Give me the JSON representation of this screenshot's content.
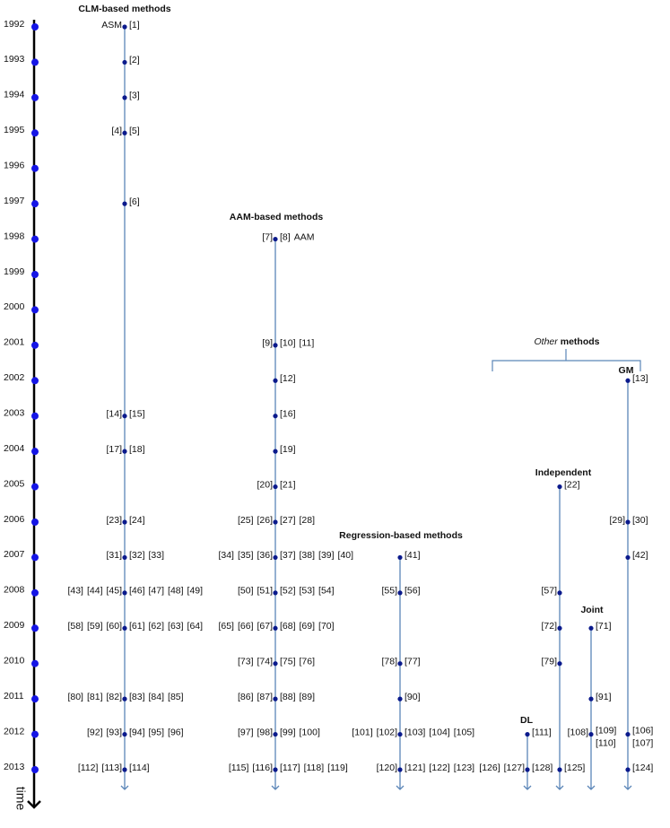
{
  "axis_label": "time",
  "years": [
    1992,
    1993,
    1994,
    1995,
    1996,
    1997,
    1998,
    1999,
    2000,
    2001,
    2002,
    2003,
    2004,
    2005,
    2006,
    2007,
    2008,
    2009,
    2010,
    2011,
    2012,
    2013
  ],
  "other_title": {
    "emphasis": "Other",
    "rest": "methods"
  },
  "branches": [
    {
      "title": "CLM-based methods",
      "rows": [
        {
          "year": 1992,
          "left": [
            "ASM"
          ],
          "right": [
            "[1]"
          ]
        },
        {
          "year": 1993,
          "left": [],
          "right": [
            "[2]"
          ]
        },
        {
          "year": 1994,
          "left": [],
          "right": [
            "[3]"
          ]
        },
        {
          "year": 1995,
          "left": [
            "[4]"
          ],
          "right": [
            "[5]"
          ]
        },
        {
          "year": 1997,
          "left": [],
          "right": [
            "[6]"
          ]
        },
        {
          "year": 2003,
          "left": [
            "[14]"
          ],
          "right": [
            "[15]"
          ]
        },
        {
          "year": 2004,
          "left": [
            "[17]"
          ],
          "right": [
            "[18]"
          ]
        },
        {
          "year": 2006,
          "left": [
            "[23]"
          ],
          "right": [
            "[24]"
          ]
        },
        {
          "year": 2007,
          "left": [
            "[31]"
          ],
          "right": [
            "[32]",
            "[33]"
          ]
        },
        {
          "year": 2008,
          "left": [
            "[43]",
            "[44]",
            "[45]"
          ],
          "right": [
            "[46]",
            "[47]",
            "[48]",
            "[49]"
          ]
        },
        {
          "year": 2009,
          "left": [
            "[58]",
            "[59]",
            "[60]"
          ],
          "right": [
            "[61]",
            "[62]",
            "[63]",
            "[64]"
          ]
        },
        {
          "year": 2011,
          "left": [
            "[80]",
            "[81]",
            "[82]"
          ],
          "right": [
            "[83]",
            "[84]",
            "[85]"
          ]
        },
        {
          "year": 2012,
          "left": [
            "[92]",
            "[93]"
          ],
          "right": [
            "[94]",
            "[95]",
            "[96]"
          ]
        },
        {
          "year": 2013,
          "left": [
            "[112]",
            "[113]"
          ],
          "right": [
            "[114]"
          ]
        }
      ]
    },
    {
      "title": "AAM-based methods",
      "rows": [
        {
          "year": 1998,
          "left": [
            "[7]"
          ],
          "right": [
            "[8]",
            "AAM"
          ]
        },
        {
          "year": 2001,
          "left": [
            "[9]"
          ],
          "right": [
            "[10]",
            "[11]"
          ]
        },
        {
          "year": 2002,
          "left": [],
          "right": [
            "[12]"
          ]
        },
        {
          "year": 2003,
          "left": [],
          "right": [
            "[16]"
          ]
        },
        {
          "year": 2004,
          "left": [],
          "right": [
            "[19]"
          ]
        },
        {
          "year": 2005,
          "left": [
            "[20]"
          ],
          "right": [
            "[21]"
          ]
        },
        {
          "year": 2006,
          "left": [
            "[25]",
            "[26]"
          ],
          "right": [
            "[27]",
            "[28]"
          ]
        },
        {
          "year": 2007,
          "left": [
            "[34]",
            "[35]",
            "[36]"
          ],
          "right": [
            "[37]",
            "[38]",
            "[39]",
            "[40]"
          ]
        },
        {
          "year": 2008,
          "left": [
            "[50]",
            "[51]"
          ],
          "right": [
            "[52]",
            "[53]",
            "[54]"
          ]
        },
        {
          "year": 2009,
          "left": [
            "[65]",
            "[66]",
            "[67]"
          ],
          "right": [
            "[68]",
            "[69]",
            "[70]"
          ]
        },
        {
          "year": 2010,
          "left": [
            "[73]",
            "[74]"
          ],
          "right": [
            "[75]",
            "[76]"
          ]
        },
        {
          "year": 2011,
          "left": [
            "[86]",
            "[87]"
          ],
          "right": [
            "[88]",
            "[89]"
          ]
        },
        {
          "year": 2012,
          "left": [
            "[97]",
            "[98]"
          ],
          "right": [
            "[99]",
            "[100]"
          ]
        },
        {
          "year": 2013,
          "left": [
            "[115]",
            "[116]"
          ],
          "right": [
            "[117]",
            "[118]",
            "[119]"
          ]
        }
      ]
    },
    {
      "title": "Regression-based methods",
      "rows": [
        {
          "year": 2007,
          "left": [],
          "right": [
            "[41]"
          ]
        },
        {
          "year": 2008,
          "left": [
            "[55]"
          ],
          "right": [
            "[56]"
          ]
        },
        {
          "year": 2010,
          "left": [
            "[78]"
          ],
          "right": [
            "[77]"
          ]
        },
        {
          "year": 2011,
          "left": [],
          "right": [
            "[90]"
          ]
        },
        {
          "year": 2012,
          "left": [
            "[101]",
            "[102]"
          ],
          "right": [
            "[103]",
            "[104]",
            "[105]"
          ]
        },
        {
          "year": 2013,
          "left": [
            "[120]"
          ],
          "right": [
            "[121]",
            "[122]",
            "[123]"
          ]
        }
      ]
    },
    {
      "title": "DL",
      "rows": [
        {
          "year": 2012,
          "left": [],
          "right": [
            "[111]"
          ]
        },
        {
          "year": 2013,
          "left": [
            "[126]",
            "[127]"
          ],
          "right": [
            "[128]"
          ]
        }
      ]
    },
    {
      "title": "Independent",
      "rows": [
        {
          "year": 2005,
          "left": [],
          "right": [
            "[22]"
          ]
        },
        {
          "year": 2008,
          "left": [
            "[57]"
          ],
          "right": []
        },
        {
          "year": 2009,
          "left": [
            "[72]"
          ],
          "right": []
        },
        {
          "year": 2010,
          "left": [
            "[79]"
          ],
          "right": []
        },
        {
          "year": 2013,
          "left": [],
          "right": [
            "[125]"
          ]
        }
      ]
    },
    {
      "title": "Joint",
      "rows": [
        {
          "year": 2009,
          "left": [],
          "right": [
            "[71]"
          ]
        },
        {
          "year": 2011,
          "left": [],
          "right": [
            "[91]"
          ]
        },
        {
          "year": 2012,
          "left": [
            "[108]"
          ],
          "right": [
            "[109]",
            "[110]"
          ]
        }
      ]
    },
    {
      "title": "GM",
      "rows": [
        {
          "year": 2002,
          "left": [],
          "right": [
            "[13]"
          ]
        },
        {
          "year": 2006,
          "left": [
            "[29]"
          ],
          "right": [
            "[30]"
          ]
        },
        {
          "year": 2007,
          "left": [],
          "right": [
            "[42]"
          ]
        },
        {
          "year": 2012,
          "left": [],
          "right": [
            "[106]",
            "[107]"
          ]
        },
        {
          "year": 2013,
          "left": [],
          "right": [
            "[124]"
          ]
        }
      ]
    }
  ]
}
